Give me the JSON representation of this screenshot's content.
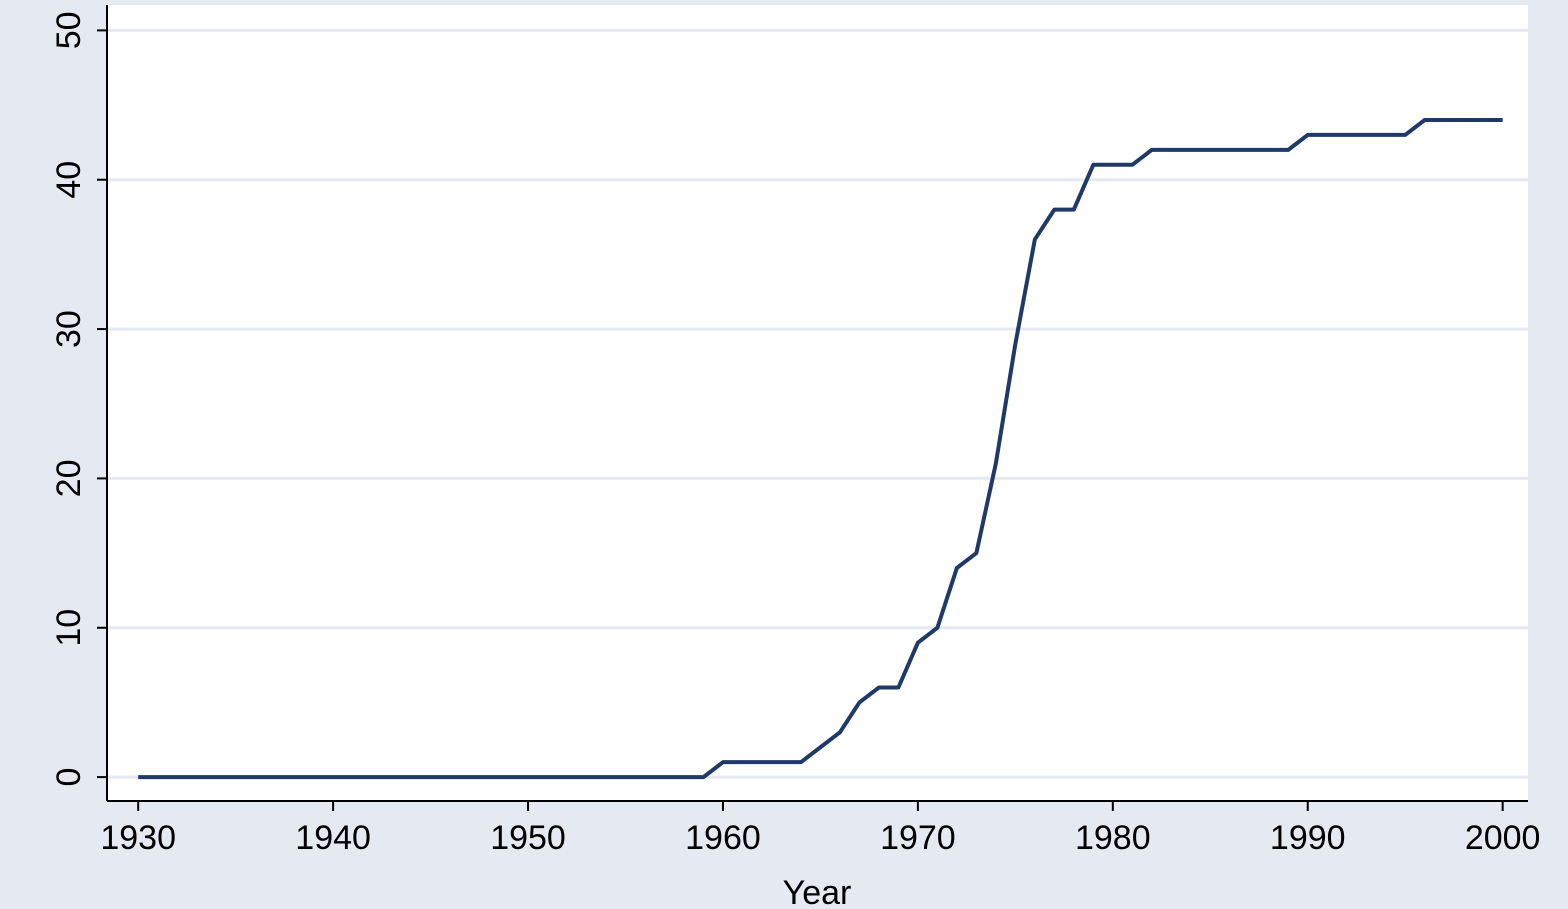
{
  "chart_data": {
    "type": "line",
    "x_label": "Year",
    "x": [
      1930,
      1931,
      1932,
      1933,
      1934,
      1935,
      1936,
      1937,
      1938,
      1939,
      1940,
      1941,
      1942,
      1943,
      1944,
      1945,
      1946,
      1947,
      1948,
      1949,
      1950,
      1951,
      1952,
      1953,
      1954,
      1955,
      1956,
      1957,
      1958,
      1959,
      1960,
      1961,
      1962,
      1963,
      1964,
      1965,
      1966,
      1967,
      1968,
      1969,
      1970,
      1971,
      1972,
      1973,
      1974,
      1975,
      1976,
      1977,
      1978,
      1979,
      1980,
      1981,
      1982,
      1983,
      1984,
      1985,
      1986,
      1987,
      1988,
      1989,
      1990,
      1991,
      1992,
      1993,
      1994,
      1995,
      1996,
      1997,
      1998,
      1999,
      2000
    ],
    "values": [
      0,
      0,
      0,
      0,
      0,
      0,
      0,
      0,
      0,
      0,
      0,
      0,
      0,
      0,
      0,
      0,
      0,
      0,
      0,
      0,
      0,
      0,
      0,
      0,
      0,
      0,
      0,
      0,
      0,
      0,
      1,
      1,
      1,
      1,
      1,
      2,
      3,
      5,
      6,
      6,
      9,
      10,
      14,
      15,
      21,
      29,
      36,
      38,
      38,
      41,
      41,
      41,
      42,
      42,
      42,
      42,
      42,
      42,
      42,
      42,
      43,
      43,
      43,
      43,
      43,
      43,
      44,
      44,
      44,
      44,
      44
    ],
    "color": "#1f3a68",
    "xlim": [
      1928.4,
      2001.3
    ],
    "xticks": [
      1930,
      1940,
      1950,
      1960,
      1970,
      1980,
      1990,
      2000
    ],
    "ylim": [
      -1.6,
      51.7
    ],
    "yticks": [
      0,
      10,
      20,
      30,
      40,
      50
    ],
    "grid": true
  }
}
